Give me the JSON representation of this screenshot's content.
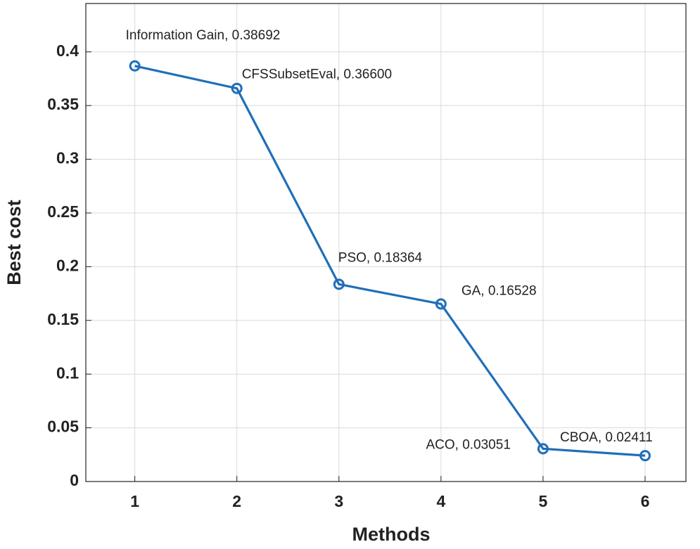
{
  "chart_data": {
    "type": "line",
    "xlabel": "Methods",
    "ylabel": "Best cost",
    "x": [
      1,
      2,
      3,
      4,
      5,
      6
    ],
    "series": [
      {
        "color": "#1f6fb8",
        "values": [
          0.38692,
          0.366,
          0.18364,
          0.16528,
          0.03051,
          0.02411
        ],
        "labels": [
          "Information Gain, 0.38692",
          "CFSSubsetEval, 0.36600",
          "PSO, 0.18364",
          "GA, 0.16528",
          "ACO, 0.03051",
          "CBOA, 0.02411"
        ]
      }
    ],
    "xlim": [
      0.52,
      6.4
    ],
    "xticks": [
      1,
      2,
      3,
      4,
      5,
      6
    ],
    "ylim": [
      0,
      0.445
    ],
    "yticks": [
      0,
      0.05,
      0.1,
      0.15,
      0.2,
      0.25,
      0.3,
      0.35,
      0.4
    ],
    "grid": true
  }
}
